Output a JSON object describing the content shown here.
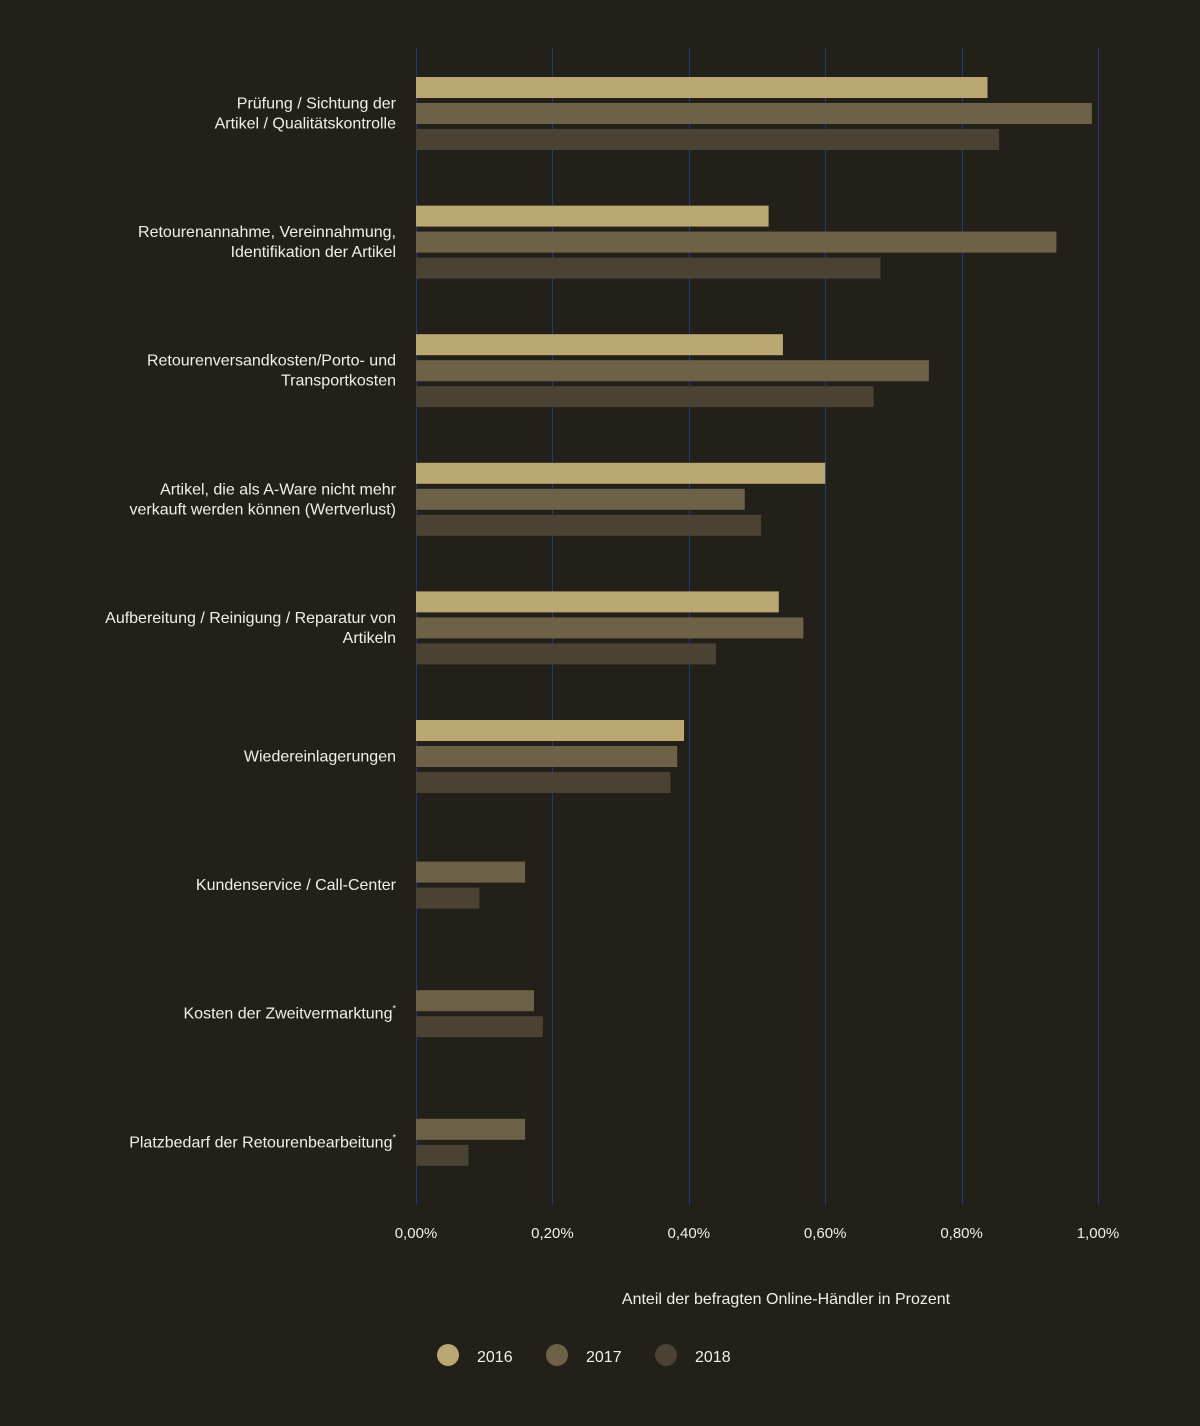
{
  "chart_data": {
    "type": "bar",
    "orientation": "horizontal",
    "xlabel": "Anteil der befragten Online-Händler in Prozent",
    "xlim": [
      0,
      1.0
    ],
    "ticks": [
      {
        "value": 0.0,
        "label": "0,00%"
      },
      {
        "value": 0.2,
        "label": "0,20%"
      },
      {
        "value": 0.4,
        "label": "0,40%"
      },
      {
        "value": 0.6,
        "label": "0,60%"
      },
      {
        "value": 0.8,
        "label": "0,80%"
      },
      {
        "value": 1.0,
        "label": "1,00%"
      }
    ],
    "grid": true,
    "legend_position": "bottom",
    "categories": [
      {
        "lines": [
          "Prüfung / Sichtung der",
          "Artikel / Qualitätskontrolle"
        ],
        "footnote": ""
      },
      {
        "lines": [
          "Retourenannahme, Vereinnahmung,",
          "Identifikation der Artikel"
        ],
        "footnote": ""
      },
      {
        "lines": [
          "Retourenversandkosten/Porto- und",
          "Transportkosten"
        ],
        "footnote": ""
      },
      {
        "lines": [
          "Artikel, die als A-Ware nicht mehr",
          "verkauft werden können (Wertverlust)"
        ],
        "footnote": ""
      },
      {
        "lines": [
          "Aufbereitung / Reinigung  / Reparatur von",
          "Artikeln"
        ],
        "footnote": ""
      },
      {
        "lines": [
          "Wiedereinlagerungen"
        ],
        "footnote": ""
      },
      {
        "lines": [
          "Kundenservice / Call-Center"
        ],
        "footnote": ""
      },
      {
        "lines": [
          "Kosten der Zweitvermarktung"
        ],
        "footnote": "*"
      },
      {
        "lines": [
          "Platzbedarf der Retourenbearbeitung"
        ],
        "footnote": "*"
      }
    ],
    "series": [
      {
        "name": "2016",
        "color": "#bba772",
        "values": [
          0.838,
          0.517,
          0.538,
          0.6,
          0.532,
          0.393,
          null,
          null,
          null
        ]
      },
      {
        "name": "2017",
        "color": "#6d6247",
        "values": [
          0.991,
          0.939,
          0.752,
          0.482,
          0.568,
          0.383,
          0.16,
          0.173,
          0.16
        ]
      },
      {
        "name": "2018",
        "color": "#4a4233",
        "values": [
          0.855,
          0.681,
          0.671,
          0.506,
          0.44,
          0.373,
          0.093,
          0.186,
          0.077
        ]
      }
    ]
  }
}
